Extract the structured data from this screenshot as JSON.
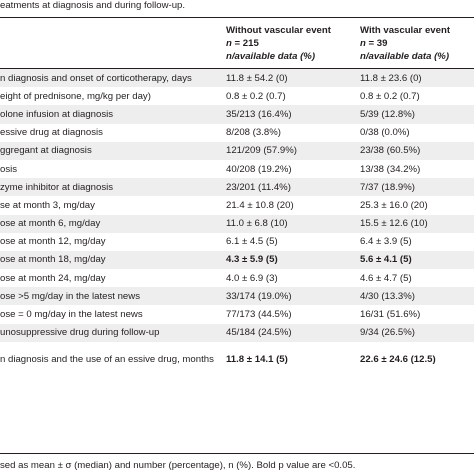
{
  "caption": "eatments at diagnosis and during follow-up.",
  "header": {
    "col_a_title": "Without vascular event",
    "col_a_n_prefix": "n",
    "col_a_n_value": " = 215",
    "col_a_sub": "n/available data (%)",
    "col_b_title": "With vascular event",
    "col_b_n_prefix": "n",
    "col_b_n_value": " = 39",
    "col_b_sub": "n/available data (%)"
  },
  "rows": [
    {
      "label": "n diagnosis and onset of corticotherapy, days",
      "a": "11.8 ± 54.2 (0)",
      "b": "11.8 ± 23.6 (0)",
      "bold": false
    },
    {
      "label": "eight of prednisone, mg/kg per day)",
      "a": "0.8 ± 0.2 (0.7)",
      "b": "0.8 ± 0.2 (0.7)",
      "bold": false
    },
    {
      "label": "olone infusion at diagnosis",
      "a": "35/213 (16.4%)",
      "b": "5/39 (12.8%)",
      "bold": false
    },
    {
      "label": "essive drug at diagnosis",
      "a": "8/208 (3.8%)",
      "b": "0/38 (0.0%)",
      "bold": false
    },
    {
      "label": "ggregant at diagnosis",
      "a": "121/209 (57.9%)",
      "b": "23/38 (60.5%)",
      "bold": false
    },
    {
      "label": "osis",
      "a": "40/208 (19.2%)",
      "b": "13/38 (34.2%)",
      "bold": false
    },
    {
      "label": "zyme inhibitor at diagnosis",
      "a": "23/201 (11.4%)",
      "b": "7/37 (18.9%)",
      "bold": false
    },
    {
      "label": "se at month 3, mg/day",
      "a": "21.4 ± 10.8 (20)",
      "b": "25.3 ± 16.0 (20)",
      "bold": false
    },
    {
      "label": "ose at month 6, mg/day",
      "a": "11.0 ± 6.8 (10)",
      "b": "15.5 ± 12.6 (10)",
      "bold": false
    },
    {
      "label": "ose at month 12, mg/day",
      "a": "6.1 ± 4.5 (5)",
      "b": "6.4 ± 3.9 (5)",
      "bold": false
    },
    {
      "label": "ose at month 18, mg/day",
      "a": "4.3 ± 5.9 (5)",
      "b": "5.6 ± 4.1 (5)",
      "bold": true
    },
    {
      "label": "ose at month 24, mg/day",
      "a": "4.0 ± 6.9 (3)",
      "b": "4.6 ± 4.7 (5)",
      "bold": false
    },
    {
      "label": "ose >5 mg/day in the latest news",
      "a": "33/174 (19.0%)",
      "b": "4/30 (13.3%)",
      "bold": false
    },
    {
      "label": "ose = 0 mg/day in the latest news",
      "a": "77/173 (44.5%)",
      "b": "16/31 (51.6%)",
      "bold": false
    },
    {
      "label": "unosuppressive drug during follow-up",
      "a": "45/184 (24.5%)",
      "b": "9/34 (26.5%)",
      "bold": false
    },
    {
      "label": "n diagnosis and the use of an essive drug, months",
      "a": "11.8 ± 14.1 (5)",
      "b": "22.6 ± 24.6 (12.5)",
      "bold": true
    }
  ],
  "footnote": "sed as mean ± σ (median) and number (percentage), n (%). Bold p value are <0.05."
}
